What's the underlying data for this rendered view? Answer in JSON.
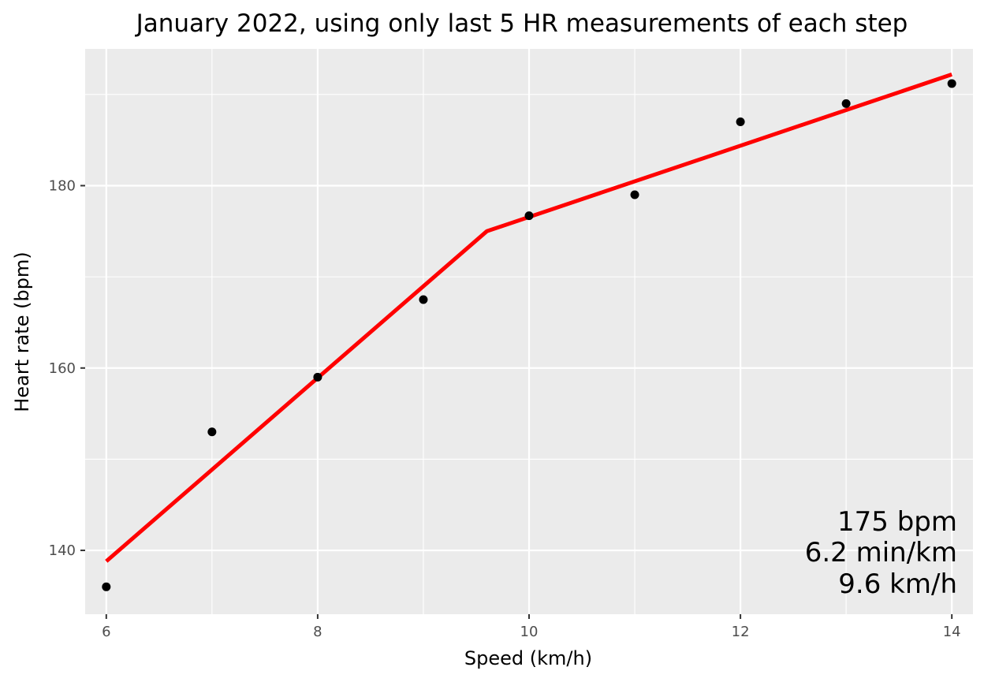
{
  "chart_data": {
    "type": "scatter",
    "title": "January 2022, using only last 5 HR measurements of each step",
    "xlabel": "Speed (km/h)",
    "ylabel": "Heart rate (bpm)",
    "xlim": [
      5.8,
      14.2
    ],
    "ylim": [
      133,
      195
    ],
    "x_ticks": [
      6,
      8,
      10,
      12,
      14
    ],
    "x_minor": [
      7,
      9,
      11,
      13
    ],
    "y_ticks": [
      140,
      160,
      180
    ],
    "y_minor": [
      130,
      150,
      170,
      190
    ],
    "grid": true,
    "points": [
      {
        "x": 6,
        "y": 136
      },
      {
        "x": 7,
        "y": 153
      },
      {
        "x": 8,
        "y": 159
      },
      {
        "x": 9,
        "y": 167.5
      },
      {
        "x": 10,
        "y": 176.7
      },
      {
        "x": 11,
        "y": 179
      },
      {
        "x": 12,
        "y": 187
      },
      {
        "x": 13,
        "y": 189
      },
      {
        "x": 14,
        "y": 191.2
      }
    ],
    "fit_line": {
      "color": "#ff0000",
      "points": [
        {
          "x": 6,
          "y": 138.8
        },
        {
          "x": 9.6,
          "y": 175
        },
        {
          "x": 14,
          "y": 192.2
        }
      ]
    },
    "annotation": [
      "175 bpm",
      "6.2 min/km",
      "9.6 km/h"
    ],
    "colors": {
      "panel_bg": "#ebebeb",
      "grid": "#ffffff",
      "point": "#000000",
      "line": "#ff0000"
    }
  }
}
